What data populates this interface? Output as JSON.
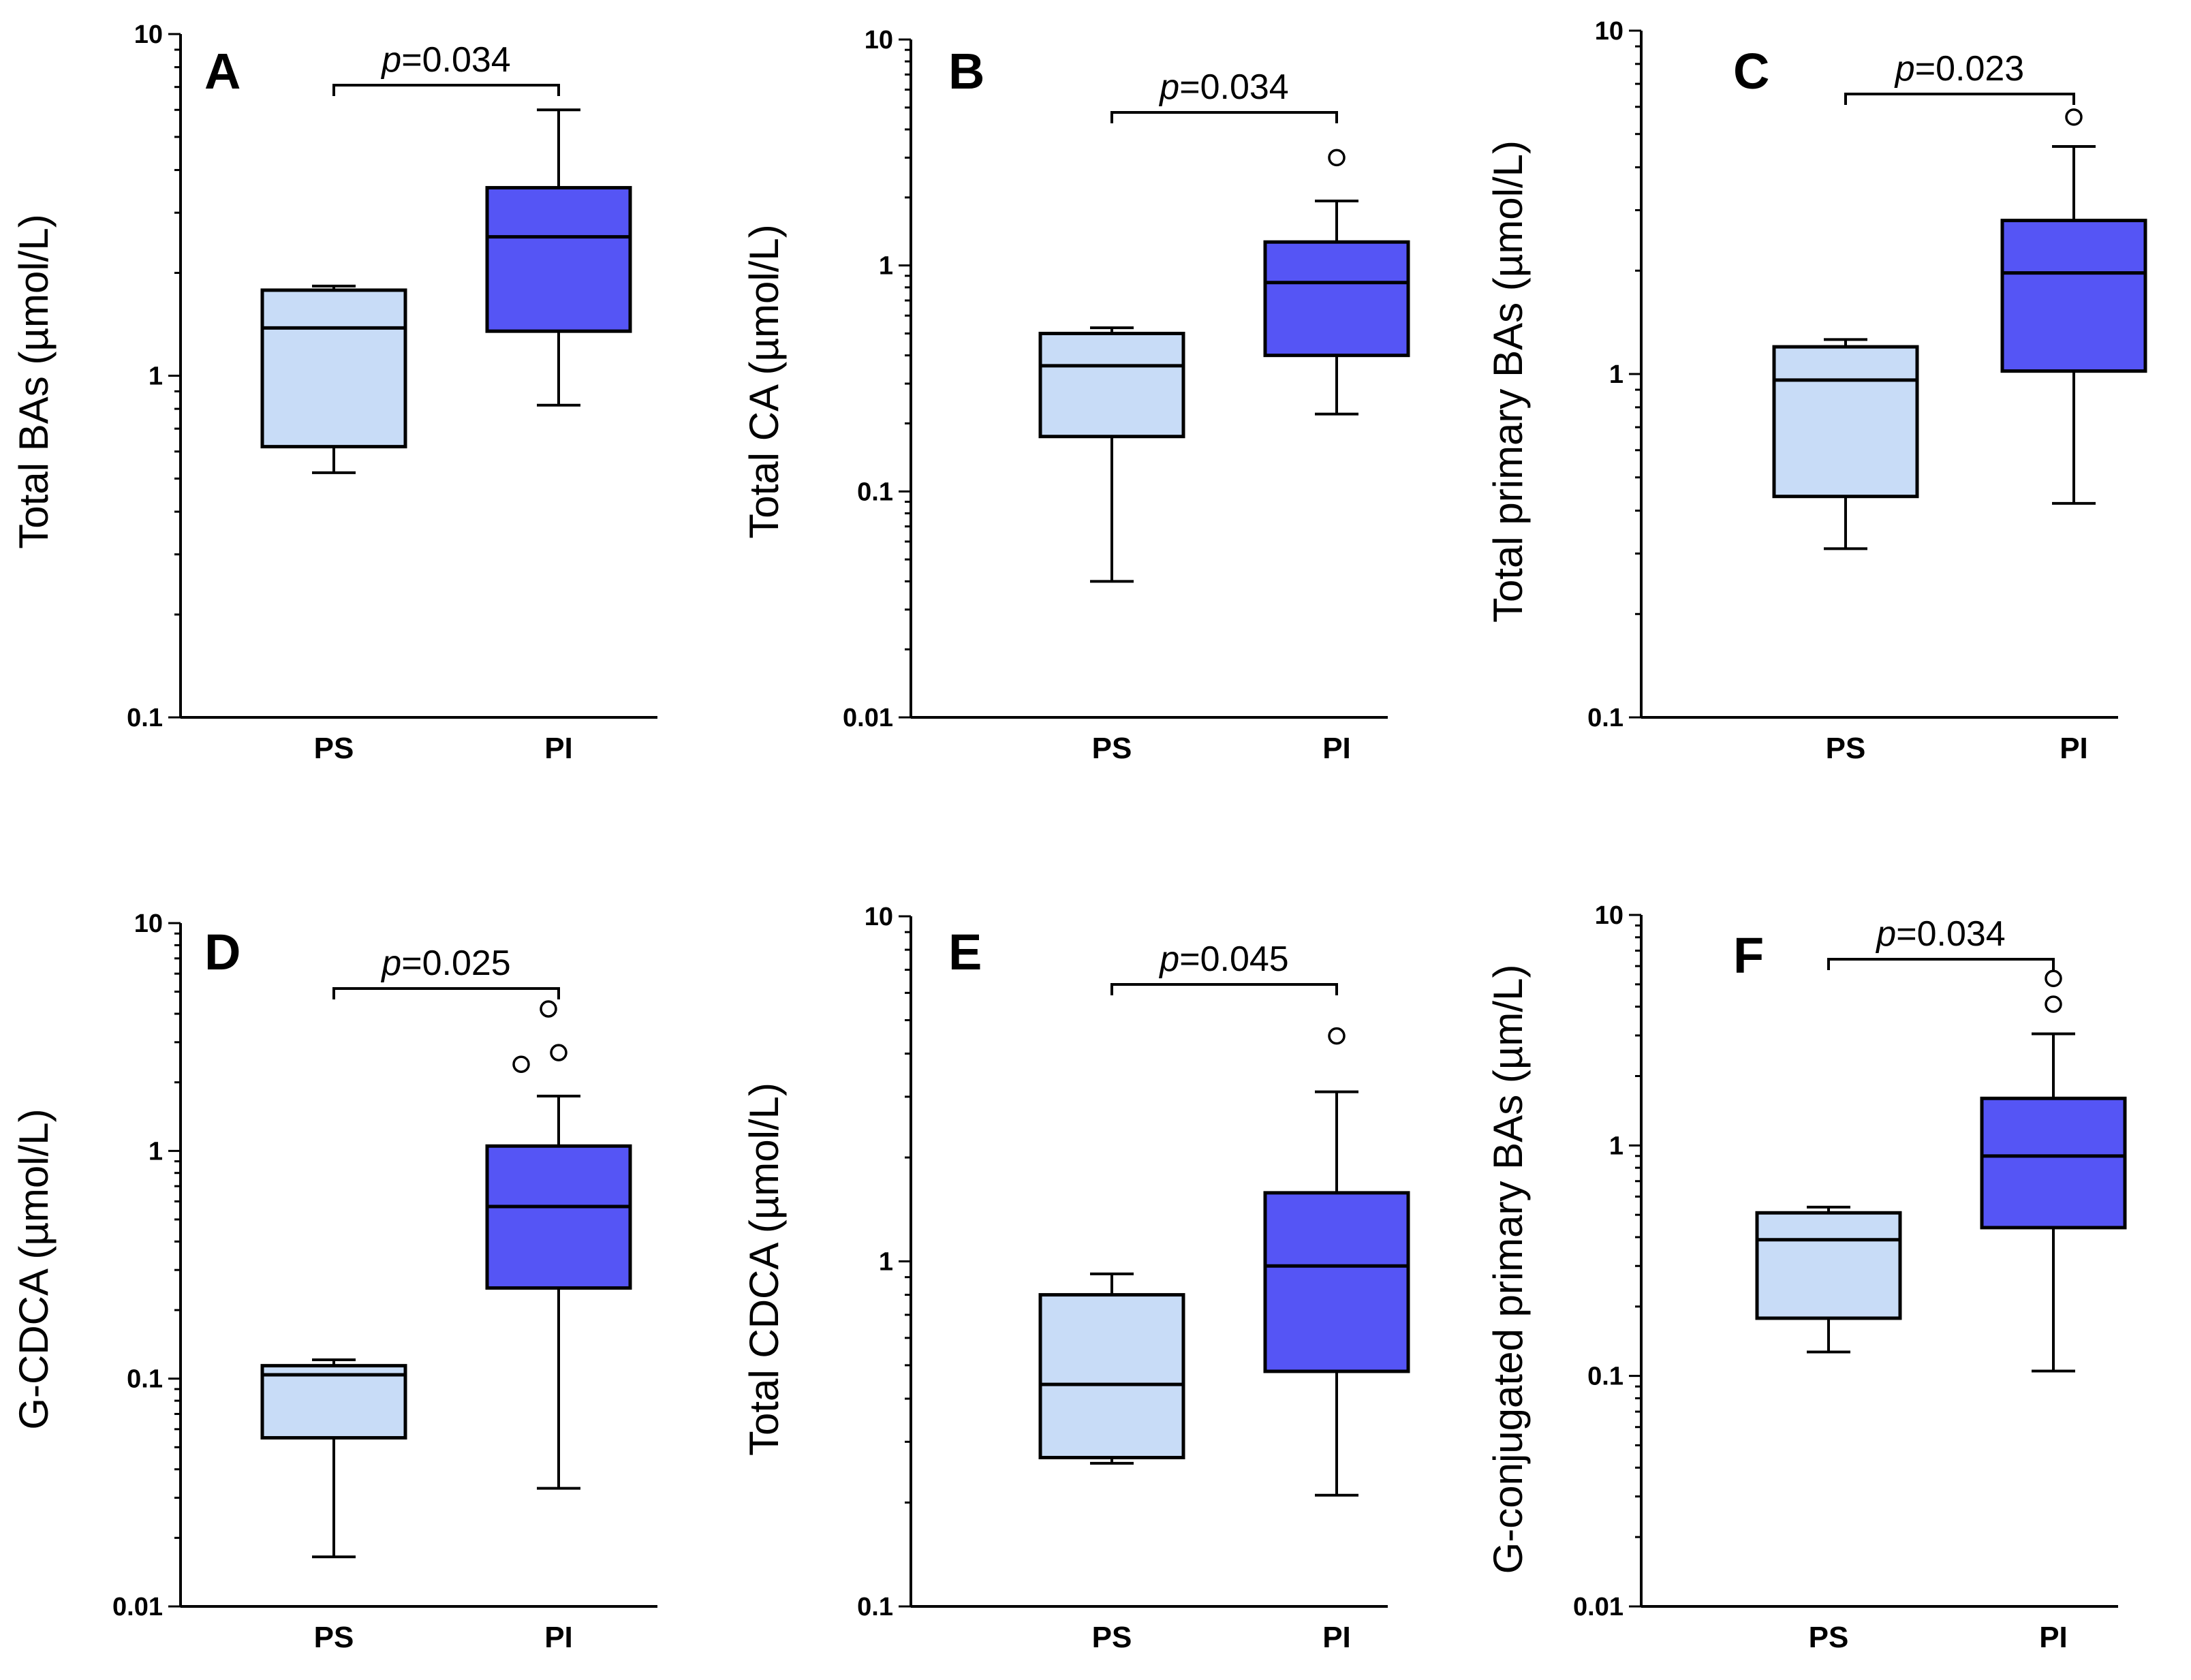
{
  "chart_data": [
    {
      "type": "box",
      "panel_label": "A",
      "ylabel": "Total BAs (µmol/L)",
      "yscale": "log",
      "ylim": [
        0.1,
        10
      ],
      "yticks": [
        0.1,
        1,
        10
      ],
      "ytick_labels": [
        "0.1",
        "1",
        "10"
      ],
      "categories": [
        "PS",
        "PI"
      ],
      "colors": [
        "#c8dcf7",
        "#5555f5"
      ],
      "boxes": [
        {
          "name": "PS",
          "min": 0.52,
          "q1": 0.62,
          "median": 1.38,
          "q3": 1.78,
          "max": 1.83,
          "outliers": []
        },
        {
          "name": "PI",
          "min": 0.82,
          "q1": 1.35,
          "median": 2.55,
          "q3": 3.55,
          "max": 6.0,
          "outliers": []
        }
      ],
      "annotation": {
        "p_label": "p",
        "p_value": "=0.034"
      }
    },
    {
      "type": "box",
      "panel_label": "B",
      "ylabel": "Total CA (µmol/L)",
      "yscale": "log",
      "ylim": [
        0.01,
        10
      ],
      "yticks": [
        0.01,
        0.1,
        1,
        10
      ],
      "ytick_labels": [
        "0.01",
        "0.1",
        "1",
        "10"
      ],
      "categories": [
        "PS",
        "PI"
      ],
      "colors": [
        "#c8dcf7",
        "#5555f5"
      ],
      "boxes": [
        {
          "name": "PS",
          "min": 0.04,
          "q1": 0.175,
          "median": 0.36,
          "q3": 0.5,
          "max": 0.53,
          "outliers": []
        },
        {
          "name": "PI",
          "min": 0.22,
          "q1": 0.4,
          "median": 0.84,
          "q3": 1.27,
          "max": 1.93,
          "outliers": [
            3.0
          ]
        }
      ],
      "annotation": {
        "p_label": "p",
        "p_value": "=0.034"
      }
    },
    {
      "type": "box",
      "panel_label": "C",
      "ylabel": "Total primary BAs (µmol/L)",
      "yscale": "log",
      "ylim": [
        0.1,
        10
      ],
      "yticks": [
        0.1,
        1,
        10
      ],
      "ytick_labels": [
        "0.1",
        "1",
        "10"
      ],
      "categories": [
        "PS",
        "PI"
      ],
      "colors": [
        "#c8dcf7",
        "#5555f5"
      ],
      "boxes": [
        {
          "name": "PS",
          "min": 0.31,
          "q1": 0.44,
          "median": 0.96,
          "q3": 1.2,
          "max": 1.26,
          "outliers": []
        },
        {
          "name": "PI",
          "min": 0.42,
          "q1": 1.02,
          "median": 1.97,
          "q3": 2.8,
          "max": 4.6,
          "outliers": [
            5.6
          ]
        }
      ],
      "annotation": {
        "p_label": "p",
        "p_value": "=0.023"
      }
    },
    {
      "type": "box",
      "panel_label": "D",
      "ylabel": "G-CDCA (µmol/L)",
      "yscale": "log",
      "ylim": [
        0.01,
        10
      ],
      "yticks": [
        0.01,
        0.1,
        1,
        10
      ],
      "ytick_labels": [
        "0.01",
        "0.1",
        "1",
        "10"
      ],
      "categories": [
        "PS",
        "PI"
      ],
      "colors": [
        "#c8dcf7",
        "#5555f5"
      ],
      "boxes": [
        {
          "name": "PS",
          "min": 0.0165,
          "q1": 0.055,
          "median": 0.104,
          "q3": 0.114,
          "max": 0.121,
          "outliers": []
        },
        {
          "name": "PI",
          "min": 0.033,
          "q1": 0.25,
          "median": 0.57,
          "q3": 1.05,
          "max": 1.74,
          "outliers": [
            2.4,
            2.7,
            4.2
          ]
        }
      ],
      "annotation": {
        "p_label": "p",
        "p_value": "=0.025"
      }
    },
    {
      "type": "box",
      "panel_label": "E",
      "ylabel": "Total CDCA (µmol/L)",
      "yscale": "log",
      "ylim": [
        0.1,
        10
      ],
      "yticks": [
        0.1,
        1,
        10
      ],
      "ytick_labels": [
        "0.1",
        "1",
        "10"
      ],
      "categories": [
        "PS",
        "PI"
      ],
      "colors": [
        "#c8dcf7",
        "#5555f5"
      ],
      "boxes": [
        {
          "name": "PS",
          "min": 0.26,
          "q1": 0.27,
          "median": 0.44,
          "q3": 0.8,
          "max": 0.92,
          "outliers": []
        },
        {
          "name": "PI",
          "min": 0.21,
          "q1": 0.48,
          "median": 0.97,
          "q3": 1.58,
          "max": 3.1,
          "outliers": [
            4.5
          ]
        }
      ],
      "annotation": {
        "p_label": "p",
        "p_value": "=0.045"
      }
    },
    {
      "type": "box",
      "panel_label": "F",
      "ylabel": "G-conjugated primary BAs (µm/L)",
      "yscale": "log",
      "ylim": [
        0.01,
        10
      ],
      "yticks": [
        0.01,
        0.1,
        1,
        10
      ],
      "ytick_labels": [
        "0.01",
        "0.1",
        "1",
        "10"
      ],
      "categories": [
        "PS",
        "PI"
      ],
      "colors": [
        "#c8dcf7",
        "#5555f5"
      ],
      "boxes": [
        {
          "name": "PS",
          "min": 0.127,
          "q1": 0.178,
          "median": 0.39,
          "q3": 0.51,
          "max": 0.54,
          "outliers": []
        },
        {
          "name": "PI",
          "min": 0.105,
          "q1": 0.44,
          "median": 0.9,
          "q3": 1.6,
          "max": 3.05,
          "outliers": [
            4.1,
            5.3
          ]
        }
      ],
      "annotation": {
        "p_label": "p",
        "p_value": "=0.034"
      }
    }
  ]
}
